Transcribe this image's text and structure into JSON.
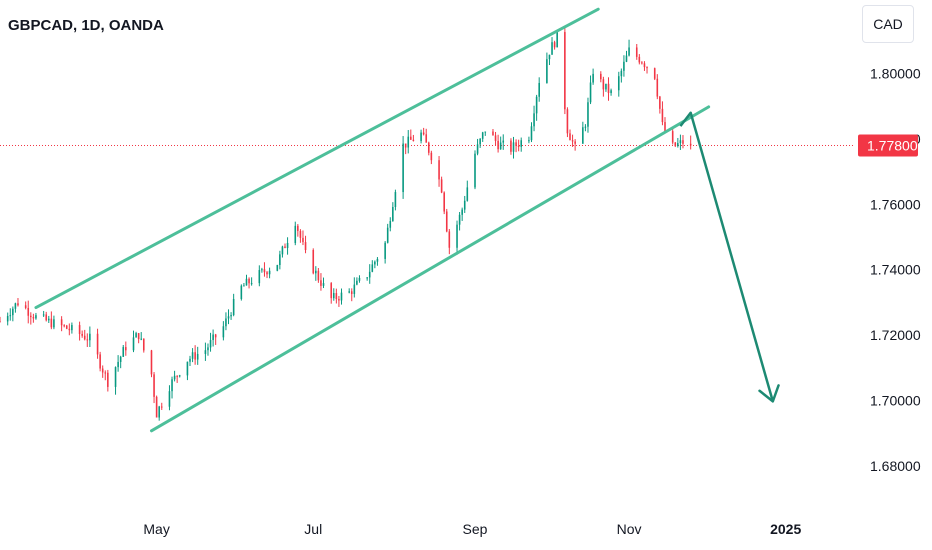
{
  "header": {
    "symbol_title": "GBPCAD, 1D, OANDA",
    "currency_button": "CAD"
  },
  "colors": {
    "up": "#089981",
    "down": "#f23645",
    "channel": "#4dbf9a",
    "arrow": "#1d8a73",
    "price_line": "#f23645"
  },
  "chart_data": {
    "type": "candlestick",
    "symbol": "GBPCAD",
    "timeframe": "1D",
    "broker": "OANDA",
    "currency": "CAD",
    "y_ticks": [
      "1.80000",
      "1.78000",
      "1.76000",
      "1.74000",
      "1.72000",
      "1.70000",
      "1.68000"
    ],
    "ylim": [
      1.668,
      1.8225
    ],
    "x_ticks": [
      {
        "label": "May",
        "date": "2024-05-01"
      },
      {
        "label": "Jul",
        "date": "2024-07-01"
      },
      {
        "label": "Sep",
        "date": "2024-09-02"
      },
      {
        "label": "Nov",
        "date": "2024-11-01"
      },
      {
        "label": "2025",
        "date": "2025-01-01"
      }
    ],
    "xlim": [
      "2024-03-01",
      "2025-01-28"
    ],
    "last_price": "1.77800",
    "last_price_value": 1.778,
    "anchors": [
      [
        "2024-03-01",
        1.7242
      ],
      [
        "2024-03-08",
        1.73
      ],
      [
        "2024-03-15",
        1.7255
      ],
      [
        "2024-03-22",
        1.7235
      ],
      [
        "2024-03-29",
        1.7215
      ],
      [
        "2024-04-05",
        1.7188
      ],
      [
        "2024-04-12",
        1.7058
      ],
      [
        "2024-04-19",
        1.7165
      ],
      [
        "2024-04-24",
        1.7202
      ],
      [
        "2024-04-29",
        1.708
      ],
      [
        "2024-05-01",
        1.696
      ],
      [
        "2024-05-06",
        1.7045
      ],
      [
        "2024-05-13",
        1.7125
      ],
      [
        "2024-05-20",
        1.7155
      ],
      [
        "2024-05-27",
        1.7225
      ],
      [
        "2024-06-03",
        1.7345
      ],
      [
        "2024-06-10",
        1.7385
      ],
      [
        "2024-06-17",
        1.742
      ],
      [
        "2024-06-24",
        1.755
      ],
      [
        "2024-06-28",
        1.7445
      ],
      [
        "2024-07-03",
        1.7375
      ],
      [
        "2024-07-08",
        1.731
      ],
      [
        "2024-07-15",
        1.733
      ],
      [
        "2024-07-22",
        1.7385
      ],
      [
        "2024-07-29",
        1.748
      ],
      [
        "2024-08-05",
        1.778
      ],
      [
        "2024-08-12",
        1.7815
      ],
      [
        "2024-08-16",
        1.775
      ],
      [
        "2024-08-20",
        1.765
      ],
      [
        "2024-08-23",
        1.747
      ],
      [
        "2024-08-28",
        1.7585
      ],
      [
        "2024-09-02",
        1.7755
      ],
      [
        "2024-09-06",
        1.783
      ],
      [
        "2024-09-11",
        1.7785
      ],
      [
        "2024-09-16",
        1.777
      ],
      [
        "2024-09-23",
        1.781
      ],
      [
        "2024-09-27",
        1.798
      ],
      [
        "2024-10-01",
        1.807
      ],
      [
        "2024-10-04",
        1.811
      ],
      [
        "2024-10-08",
        1.783
      ],
      [
        "2024-10-11",
        1.777
      ],
      [
        "2024-10-15",
        1.785
      ],
      [
        "2024-10-18",
        1.801
      ],
      [
        "2024-10-22",
        1.796
      ],
      [
        "2024-10-25",
        1.794
      ],
      [
        "2024-10-28",
        1.7985
      ],
      [
        "2024-11-01",
        1.807
      ],
      [
        "2024-11-06",
        1.804
      ],
      [
        "2024-11-11",
        1.7995
      ],
      [
        "2024-11-14",
        1.784
      ],
      [
        "2024-11-18",
        1.7775
      ],
      [
        "2024-11-22",
        1.779
      ],
      [
        "2024-11-25",
        1.778
      ]
    ],
    "annotations": [
      {
        "type": "trend_line",
        "name": "channel-upper",
        "from": [
          "2024-03-15",
          1.7284
        ],
        "to": [
          "2024-10-20",
          1.8197
        ]
      },
      {
        "type": "trend_line",
        "name": "channel-lower",
        "from": [
          "2024-04-29",
          1.6907
        ],
        "to": [
          "2024-12-02",
          1.7898
        ]
      },
      {
        "type": "arrow",
        "name": "forecast-arrow",
        "points": [
          [
            "2024-11-21",
            1.7839
          ],
          [
            "2024-11-25",
            1.788
          ],
          [
            "2024-12-27",
            1.6997
          ]
        ]
      }
    ]
  }
}
